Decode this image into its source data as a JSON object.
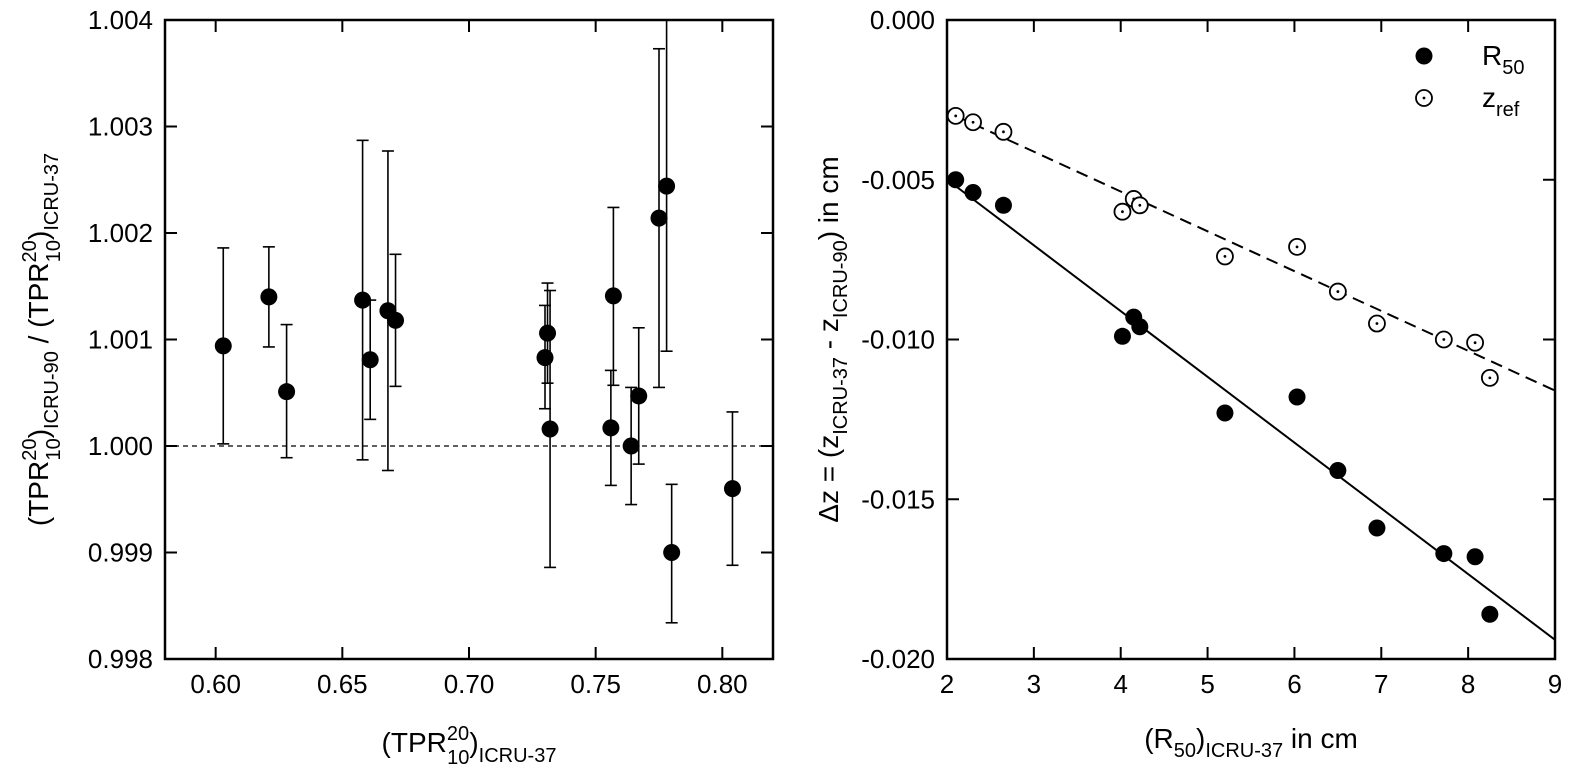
{
  "chart_data": [
    {
      "type": "scatter",
      "title": "",
      "xlabel": {
        "base": "(TPR",
        "sup": "20",
        "sub": "10",
        "suffix": ")",
        "suffix_sub": "ICRU-37"
      },
      "ylabel": {
        "part1_base": "(TPR",
        "part1_sup": "20",
        "part1_sub": "10",
        "part1_close": ")",
        "part1_close_sub": "ICRU-90",
        "divider": " / ",
        "part2_base": "(TPR",
        "part2_sup": "20",
        "part2_sub": "10",
        "part2_close": ")",
        "part2_close_sub": "ICRU-37"
      },
      "xlim": [
        0.58,
        0.82
      ],
      "ylim": [
        0.998,
        1.004
      ],
      "xticks": [
        0.6,
        0.65,
        0.7,
        0.75,
        0.8
      ],
      "xtick_labels": [
        "0.60",
        "0.65",
        "0.70",
        "0.75",
        "0.80"
      ],
      "yticks": [
        0.998,
        0.999,
        1.0,
        1.001,
        1.002,
        1.003,
        1.004
      ],
      "ytick_labels": [
        "0.998",
        "0.999",
        "1.000",
        "1.001",
        "1.002",
        "1.003",
        "1.004"
      ],
      "reference_line": {
        "y": 1.0,
        "style": "dashed"
      },
      "points": [
        {
          "x": 0.603,
          "y": 1.00094,
          "lo": 1.00002,
          "hi": 1.00186
        },
        {
          "x": 0.621,
          "y": 1.0014,
          "lo": 1.00093,
          "hi": 1.00187
        },
        {
          "x": 0.628,
          "y": 1.00051,
          "lo": 0.99989,
          "hi": 1.00114
        },
        {
          "x": 0.658,
          "y": 1.00137,
          "lo": 0.99987,
          "hi": 1.00287
        },
        {
          "x": 0.661,
          "y": 1.00081,
          "lo": 1.00025,
          "hi": 1.00137
        },
        {
          "x": 0.668,
          "y": 1.00127,
          "lo": 0.99977,
          "hi": 1.00277
        },
        {
          "x": 0.671,
          "y": 1.00118,
          "lo": 1.00056,
          "hi": 1.0018
        },
        {
          "x": 0.73,
          "y": 1.00083,
          "lo": 1.00035,
          "hi": 1.00132
        },
        {
          "x": 0.731,
          "y": 1.00106,
          "lo": 1.00059,
          "hi": 1.00153
        },
        {
          "x": 0.732,
          "y": 1.00016,
          "lo": 0.99886,
          "hi": 1.00146
        },
        {
          "x": 0.756,
          "y": 1.00017,
          "lo": 0.99963,
          "hi": 1.00071
        },
        {
          "x": 0.757,
          "y": 1.00141,
          "lo": 1.00057,
          "hi": 1.00224
        },
        {
          "x": 0.764,
          "y": 1.0,
          "lo": 0.99945,
          "hi": 1.00055
        },
        {
          "x": 0.767,
          "y": 1.00047,
          "lo": 0.99983,
          "hi": 1.00111
        },
        {
          "x": 0.775,
          "y": 1.00214,
          "lo": 1.00055,
          "hi": 1.00373
        },
        {
          "x": 0.778,
          "y": 1.00244,
          "lo": 1.00089,
          "hi": 1.004
        },
        {
          "x": 0.78,
          "y": 0.999,
          "lo": 0.99834,
          "hi": 0.99964
        },
        {
          "x": 0.804,
          "y": 0.9996,
          "lo": 0.99888,
          "hi": 1.00032
        }
      ]
    },
    {
      "type": "scatter",
      "title": "",
      "xlabel": {
        "base": "(R",
        "sub": "50",
        "close": ")",
        "close_sub": "ICRU-37",
        "suffix": " in cm"
      },
      "ylabel": {
        "prefix": "Δz = (z",
        "sub1": "ICRU-37",
        "mid": " - z",
        "sub2": "ICRU-90",
        "suffix": ") in cm"
      },
      "xlim": [
        2,
        9
      ],
      "ylim": [
        -0.02,
        0.0
      ],
      "xticks": [
        2,
        3,
        4,
        5,
        6,
        7,
        8,
        9
      ],
      "xtick_labels": [
        "2",
        "3",
        "4",
        "5",
        "6",
        "7",
        "8",
        "9"
      ],
      "yticks": [
        0.0,
        -0.005,
        -0.01,
        -0.015,
        -0.02
      ],
      "ytick_labels": [
        "0.000",
        "-0.005",
        "-0.010",
        "-0.015",
        "-0.020"
      ],
      "legend_position": "top-right",
      "series": [
        {
          "name": "R50",
          "legend_base": "R",
          "legend_sub": "50",
          "marker": "filled-circle",
          "fit_line": {
            "style": "solid",
            "x": [
              2.1,
              9.0
            ],
            "y": [
              -0.0052,
              -0.0194
            ]
          },
          "points": [
            {
              "x": 2.1,
              "y": -0.005
            },
            {
              "x": 2.3,
              "y": -0.0054
            },
            {
              "x": 2.65,
              "y": -0.0058
            },
            {
              "x": 4.02,
              "y": -0.0099
            },
            {
              "x": 4.15,
              "y": -0.0093
            },
            {
              "x": 4.22,
              "y": -0.0096
            },
            {
              "x": 5.2,
              "y": -0.0123
            },
            {
              "x": 6.03,
              "y": -0.0118
            },
            {
              "x": 6.5,
              "y": -0.0141
            },
            {
              "x": 6.95,
              "y": -0.0159
            },
            {
              "x": 7.72,
              "y": -0.0167
            },
            {
              "x": 8.08,
              "y": -0.0168
            },
            {
              "x": 8.25,
              "y": -0.0186
            }
          ]
        },
        {
          "name": "zref",
          "legend_base": "z",
          "legend_sub": "ref",
          "marker": "open-circle-dot",
          "fit_line": {
            "style": "dashed",
            "x": [
              2.1,
              9.0
            ],
            "y": [
              -0.003,
              -0.0116
            ]
          },
          "points": [
            {
              "x": 2.1,
              "y": -0.003
            },
            {
              "x": 2.3,
              "y": -0.0032
            },
            {
              "x": 2.65,
              "y": -0.0035
            },
            {
              "x": 4.02,
              "y": -0.006
            },
            {
              "x": 4.15,
              "y": -0.0056
            },
            {
              "x": 4.22,
              "y": -0.0058
            },
            {
              "x": 5.2,
              "y": -0.0074
            },
            {
              "x": 6.03,
              "y": -0.0071
            },
            {
              "x": 6.5,
              "y": -0.0085
            },
            {
              "x": 6.95,
              "y": -0.0095
            },
            {
              "x": 7.72,
              "y": -0.01
            },
            {
              "x": 8.08,
              "y": -0.0101
            },
            {
              "x": 8.25,
              "y": -0.0112
            }
          ]
        }
      ]
    }
  ]
}
